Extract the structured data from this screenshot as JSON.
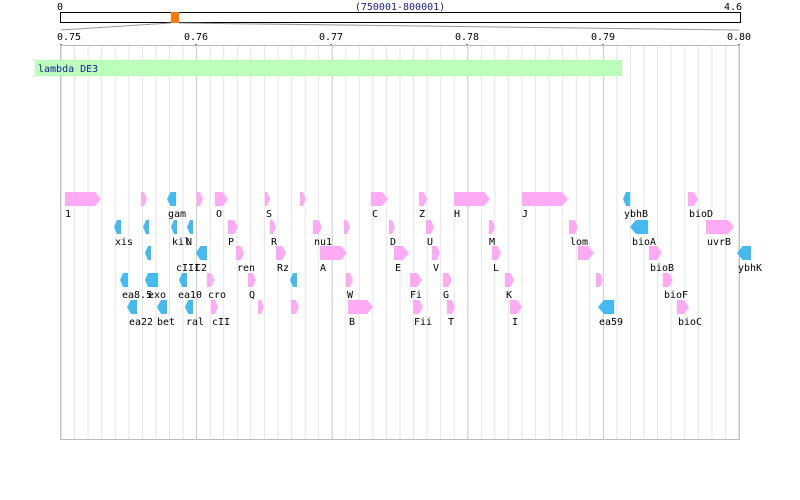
{
  "overview": {
    "start_label": "0",
    "end_label": "4.6",
    "range_label": "(750001-800001)"
  },
  "ruler": {
    "ticks": [
      "0.75",
      "0.76",
      "0.77",
      "0.78",
      "0.79",
      "0.80"
    ]
  },
  "region": {
    "label": "lambda DE3"
  },
  "colors": {
    "forward": "#ffaaf5",
    "reverse": "#44bbf0",
    "region": "#bbffbb",
    "marker": "#ff7700"
  },
  "genes": [
    {
      "label": "1",
      "strand": "+"
    },
    {
      "label": "gam",
      "strand": "-"
    },
    {
      "label": "O",
      "strand": "+"
    },
    {
      "label": "S",
      "strand": "+"
    },
    {
      "label": "C",
      "strand": "+"
    },
    {
      "label": "Z",
      "strand": "+"
    },
    {
      "label": "H",
      "strand": "+"
    },
    {
      "label": "J",
      "strand": "+"
    },
    {
      "label": "ybhB",
      "strand": "-"
    },
    {
      "label": "bioD",
      "strand": "+"
    },
    {
      "label": "xis",
      "strand": "-"
    },
    {
      "label": "kil",
      "strand": "-"
    },
    {
      "label": "N",
      "strand": "-"
    },
    {
      "label": "P",
      "strand": "+"
    },
    {
      "label": "R",
      "strand": "+"
    },
    {
      "label": "nu1",
      "strand": "+"
    },
    {
      "label": "D",
      "strand": "+"
    },
    {
      "label": "U",
      "strand": "+"
    },
    {
      "label": "M",
      "strand": "+"
    },
    {
      "label": "lom",
      "strand": "+"
    },
    {
      "label": "bioA",
      "strand": "-"
    },
    {
      "label": "uvrB",
      "strand": "+"
    },
    {
      "label": "cIII",
      "strand": "-"
    },
    {
      "label": "C2",
      "strand": "-"
    },
    {
      "label": "ren",
      "strand": "+"
    },
    {
      "label": "Rz",
      "strand": "+"
    },
    {
      "label": "A",
      "strand": "+"
    },
    {
      "label": "E",
      "strand": "+"
    },
    {
      "label": "V",
      "strand": "+"
    },
    {
      "label": "L",
      "strand": "+"
    },
    {
      "label": "bioB",
      "strand": "+"
    },
    {
      "label": "ybhK",
      "strand": "-"
    },
    {
      "label": "ea8.5",
      "strand": "-"
    },
    {
      "label": "exo",
      "strand": "-"
    },
    {
      "label": "ea10",
      "strand": "-"
    },
    {
      "label": "cro",
      "strand": "+"
    },
    {
      "label": "Q",
      "strand": "+"
    },
    {
      "label": "W",
      "strand": "+"
    },
    {
      "label": "Fi",
      "strand": "+"
    },
    {
      "label": "G",
      "strand": "+"
    },
    {
      "label": "K",
      "strand": "+"
    },
    {
      "label": "bioF",
      "strand": "+"
    },
    {
      "label": "ea22",
      "strand": "-"
    },
    {
      "label": "bet",
      "strand": "-"
    },
    {
      "label": "ral",
      "strand": "-"
    },
    {
      "label": "cII",
      "strand": "+"
    },
    {
      "label": "B",
      "strand": "+"
    },
    {
      "label": "Fii",
      "strand": "+"
    },
    {
      "label": "T",
      "strand": "+"
    },
    {
      "label": "I",
      "strand": "+"
    },
    {
      "label": "ea59",
      "strand": "-"
    },
    {
      "label": "bioC",
      "strand": "+"
    },
    {
      "label": "",
      "strand": "+"
    },
    {
      "label": "",
      "strand": "+"
    },
    {
      "label": "",
      "strand": "-"
    },
    {
      "label": "",
      "strand": "-"
    },
    {
      "label": "",
      "strand": "-"
    },
    {
      "label": "",
      "strand": "+"
    },
    {
      "label": "",
      "strand": "+"
    },
    {
      "label": "",
      "strand": "+"
    },
    {
      "label": "",
      "strand": "+"
    },
    {
      "label": "",
      "strand": "+"
    },
    {
      "label": "",
      "strand": "+"
    },
    {
      "label": "",
      "strand": "+"
    }
  ]
}
